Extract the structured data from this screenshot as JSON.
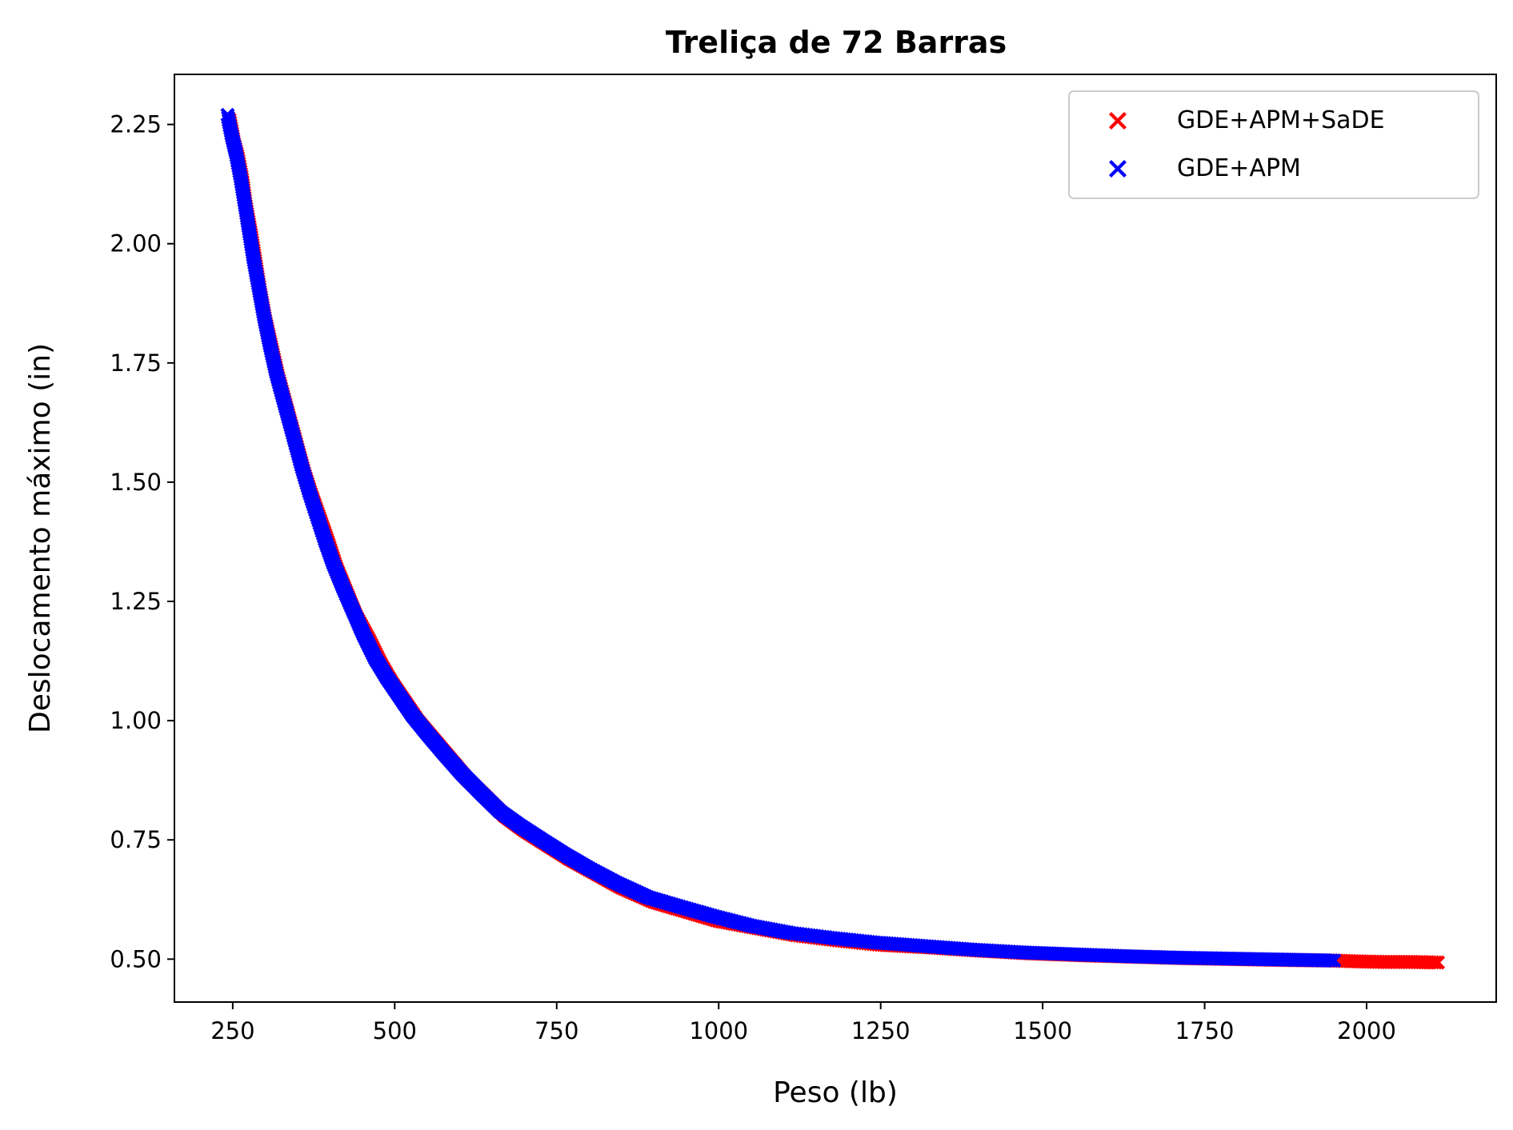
{
  "chart_data": {
    "type": "scatter",
    "title": "Treliça de 72 Barras",
    "xlabel": "Peso (lb)",
    "ylabel": "Deslocamento máximo (in)",
    "xlim": [
      160,
      2200
    ],
    "ylim": [
      0.41,
      2.355
    ],
    "x_ticks": [
      250,
      500,
      750,
      1000,
      1250,
      1500,
      1750,
      2000
    ],
    "x_tick_labels": [
      "250",
      "500",
      "750",
      "1000",
      "1250",
      "1500",
      "1750",
      "2000"
    ],
    "y_ticks": [
      0.5,
      0.75,
      1.0,
      1.25,
      1.5,
      1.75,
      2.0,
      2.25
    ],
    "y_tick_labels": [
      "0.50",
      "0.75",
      "1.00",
      "1.25",
      "1.50",
      "1.75",
      "2.00",
      "2.25"
    ],
    "grid": false,
    "legend_position": "top-right",
    "marker": "x-filled",
    "series": [
      {
        "name": "GDE+APM+SaDE",
        "color": "#ff0000",
        "points": [
          [
            245,
            2.26
          ],
          [
            252,
            2.21
          ],
          [
            258,
            2.18
          ],
          [
            265,
            2.13
          ],
          [
            270,
            2.08
          ],
          [
            278,
            2.02
          ],
          [
            285,
            1.96
          ],
          [
            292,
            1.9
          ],
          [
            300,
            1.84
          ],
          [
            310,
            1.78
          ],
          [
            320,
            1.72
          ],
          [
            330,
            1.67
          ],
          [
            340,
            1.62
          ],
          [
            350,
            1.57
          ],
          [
            360,
            1.52
          ],
          [
            372,
            1.47
          ],
          [
            385,
            1.42
          ],
          [
            398,
            1.37
          ],
          [
            410,
            1.32
          ],
          [
            425,
            1.27
          ],
          [
            440,
            1.22
          ],
          [
            460,
            1.17
          ],
          [
            478,
            1.12
          ],
          [
            495,
            1.08
          ],
          [
            515,
            1.04
          ],
          [
            535,
            1.0
          ],
          [
            560,
            0.96
          ],
          [
            585,
            0.92
          ],
          [
            610,
            0.88
          ],
          [
            640,
            0.84
          ],
          [
            670,
            0.8
          ],
          [
            700,
            0.77
          ],
          [
            735,
            0.74
          ],
          [
            770,
            0.71
          ],
          [
            810,
            0.68
          ],
          [
            850,
            0.65
          ],
          [
            900,
            0.62
          ],
          [
            950,
            0.6
          ],
          [
            1000,
            0.58
          ],
          [
            1060,
            0.565
          ],
          [
            1120,
            0.55
          ],
          [
            1180,
            0.54
          ],
          [
            1250,
            0.53
          ],
          [
            1320,
            0.525
          ],
          [
            1400,
            0.518
          ],
          [
            1480,
            0.512
          ],
          [
            1560,
            0.508
          ],
          [
            1640,
            0.505
          ],
          [
            1720,
            0.502
          ],
          [
            1800,
            0.5
          ],
          [
            1880,
            0.498
          ],
          [
            1950,
            0.497
          ],
          [
            1990,
            0.495
          ],
          [
            2030,
            0.494
          ],
          [
            2070,
            0.494
          ],
          [
            2110,
            0.493
          ]
        ]
      },
      {
        "name": "GDE+APM",
        "color": "#0000ff",
        "points": [
          [
            242,
            2.27
          ],
          [
            248,
            2.23
          ],
          [
            255,
            2.19
          ],
          [
            262,
            2.14
          ],
          [
            268,
            2.09
          ],
          [
            275,
            2.03
          ],
          [
            282,
            1.97
          ],
          [
            290,
            1.91
          ],
          [
            298,
            1.85
          ],
          [
            307,
            1.79
          ],
          [
            317,
            1.73
          ],
          [
            327,
            1.68
          ],
          [
            337,
            1.63
          ],
          [
            347,
            1.58
          ],
          [
            357,
            1.53
          ],
          [
            368,
            1.48
          ],
          [
            380,
            1.43
          ],
          [
            392,
            1.38
          ],
          [
            405,
            1.33
          ],
          [
            420,
            1.28
          ],
          [
            436,
            1.23
          ],
          [
            452,
            1.18
          ],
          [
            470,
            1.13
          ],
          [
            488,
            1.09
          ],
          [
            508,
            1.05
          ],
          [
            528,
            1.01
          ],
          [
            552,
            0.97
          ],
          [
            577,
            0.93
          ],
          [
            603,
            0.89
          ],
          [
            632,
            0.85
          ],
          [
            662,
            0.81
          ],
          [
            693,
            0.78
          ],
          [
            727,
            0.75
          ],
          [
            762,
            0.72
          ],
          [
            800,
            0.69
          ],
          [
            842,
            0.66
          ],
          [
            890,
            0.63
          ],
          [
            940,
            0.61
          ],
          [
            992,
            0.59
          ],
          [
            1050,
            0.57
          ],
          [
            1110,
            0.555
          ],
          [
            1170,
            0.545
          ],
          [
            1240,
            0.535
          ],
          [
            1310,
            0.528
          ],
          [
            1390,
            0.52
          ],
          [
            1470,
            0.514
          ],
          [
            1550,
            0.51
          ],
          [
            1630,
            0.506
          ],
          [
            1710,
            0.503
          ],
          [
            1790,
            0.501
          ],
          [
            1870,
            0.499
          ],
          [
            1950,
            0.497
          ]
        ]
      }
    ]
  }
}
